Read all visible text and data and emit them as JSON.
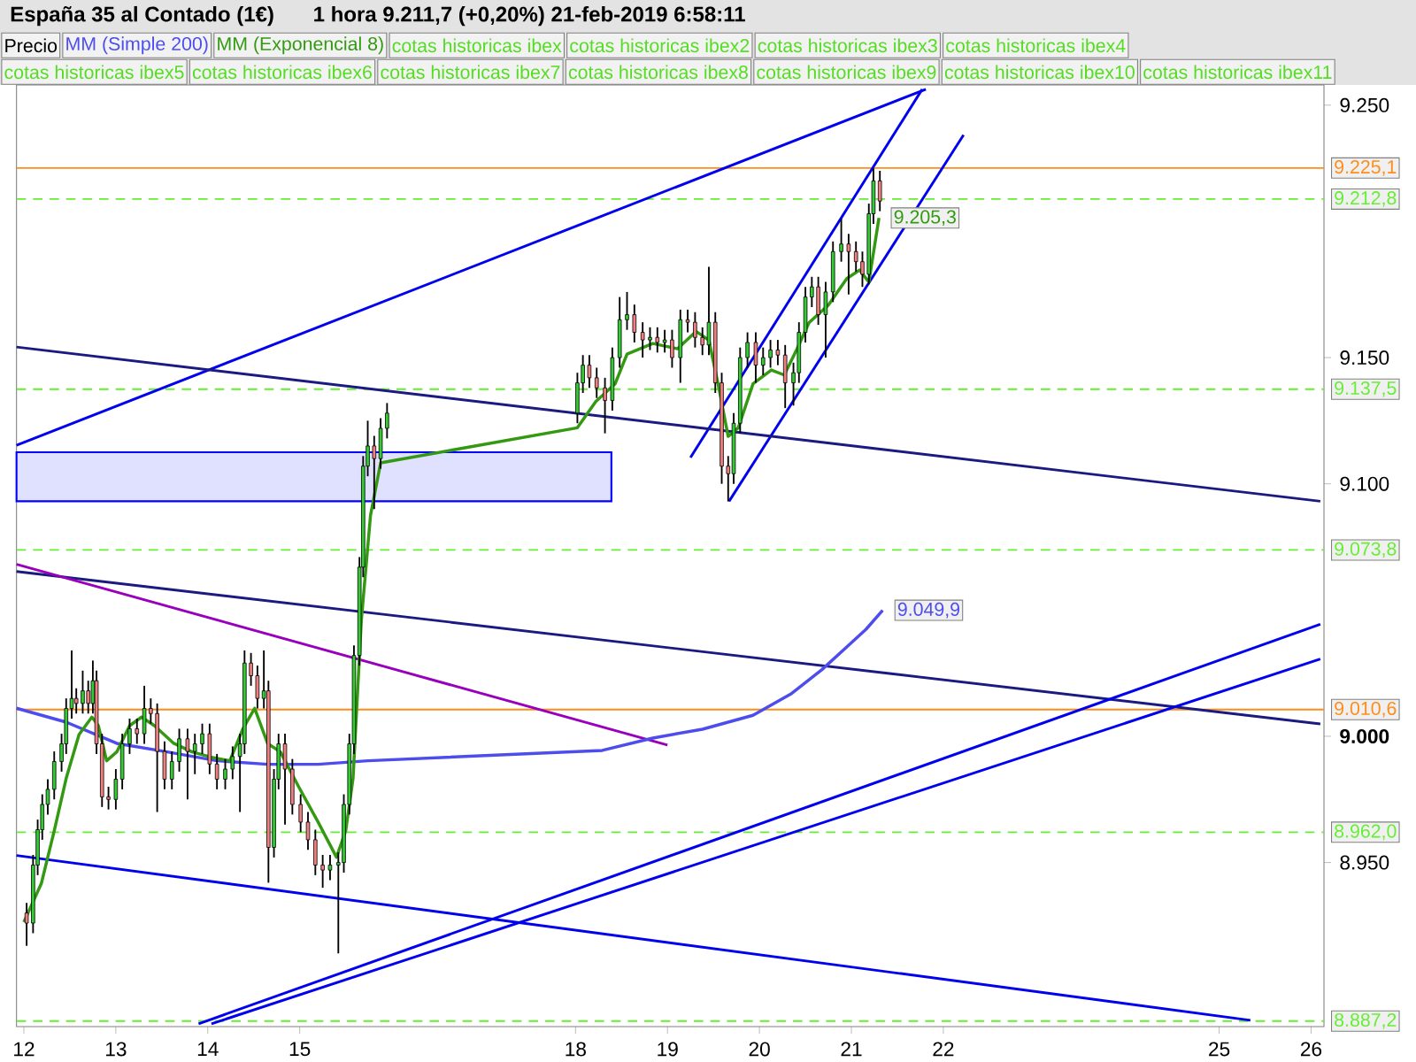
{
  "chart_data": {
    "type": "candlestick",
    "title": "España 35 al Contado (1€)",
    "subtitle": "1 hora   9.211,7 (+0,20%)   21-feb-2019 6:58:11",
    "legend": "top",
    "xlim": [
      11.92,
      26.14
    ],
    "ylim": [
      8885,
      9258
    ],
    "xticks": [
      12,
      13,
      14,
      15,
      18,
      19,
      20,
      21,
      22,
      25,
      26
    ],
    "yticks": [
      {
        "value": 8950,
        "label": "8.950"
      },
      {
        "value": 9000,
        "label": "**9.000**"
      },
      {
        "value": 9100,
        "label": "9.100"
      },
      {
        "value": 9150,
        "label": "9.150"
      },
      {
        "value": 9250,
        "label": "9.250"
      }
    ],
    "series": [
      {
        "name": "Precio",
        "color": "#000000",
        "x": [
          12.03,
          12.1,
          12.15,
          12.2,
          12.26,
          12.33,
          12.41,
          12.46,
          12.52,
          12.57,
          12.64,
          12.7,
          12.75,
          12.79,
          12.85,
          12.92,
          13.0,
          13.07,
          13.15,
          13.23,
          13.31,
          13.38,
          13.45,
          13.53,
          13.61,
          13.69,
          13.78,
          13.86,
          13.94,
          14.02,
          14.1,
          14.19,
          14.27,
          14.35,
          14.4,
          14.47,
          14.54,
          14.61,
          14.66,
          14.72,
          14.77,
          14.84,
          14.92,
          15.01,
          15.09,
          15.17,
          15.25,
          15.33,
          15.42,
          15.48,
          15.54,
          15.59,
          15.65,
          15.69,
          15.74,
          15.81,
          15.88,
          15.95,
          18.02,
          18.08,
          18.15,
          18.23,
          18.32,
          18.4,
          18.48,
          18.56,
          18.64,
          18.73,
          18.81,
          18.89,
          18.97,
          19.05,
          19.14,
          19.22,
          19.3,
          19.38,
          19.45,
          19.52,
          19.59,
          19.66,
          19.72,
          19.79,
          19.87,
          19.96,
          20.04,
          20.12,
          20.2,
          20.28,
          20.37,
          20.43,
          20.5,
          20.57,
          20.64,
          20.72,
          20.8,
          20.89,
          20.97,
          21.05,
          21.12,
          21.19,
          21.24,
          21.31
        ],
        "ohlc": [
          [
            8930,
            8934,
            8917,
            8926
          ],
          [
            8926,
            8953,
            8922,
            8949
          ],
          [
            8949,
            8967,
            8945,
            8963
          ],
          [
            8963,
            8977,
            8959,
            8973
          ],
          [
            8973,
            8983,
            8969,
            8979
          ],
          [
            8979,
            8994,
            8975,
            8990
          ],
          [
            8990,
            9001,
            8986,
            8997
          ],
          [
            8997,
            9015,
            8993,
            9011
          ],
          [
            9011,
            9034,
            9007,
            9015
          ],
          [
            9015,
            9019,
            9009,
            9013
          ],
          [
            9013,
            9026,
            9009,
            9018
          ],
          [
            9018,
            9022,
            9009,
            9013
          ],
          [
            9013,
            9030,
            9009,
            9022
          ],
          [
            9022,
            9026,
            8993,
            8997
          ],
          [
            8997,
            9001,
            8972,
            8976
          ],
          [
            8976,
            8980,
            8971,
            8975
          ],
          [
            8975,
            8987,
            8971,
            8983
          ],
          [
            8983,
            9001,
            8979,
            8997
          ],
          [
            8997,
            9007,
            8993,
            9003
          ],
          [
            9003,
            9007,
            8997,
            9001
          ],
          [
            9001,
            9020,
            8997,
            9011
          ],
          [
            9011,
            9015,
            9005,
            9009
          ],
          [
            9009,
            9013,
            8970,
            8994
          ],
          [
            8994,
            8998,
            8979,
            8983
          ],
          [
            8983,
            8994,
            8979,
            8990
          ],
          [
            8990,
            9003,
            8986,
            8999
          ],
          [
            8999,
            9003,
            8975,
            8994
          ],
          [
            8994,
            9001,
            8985,
            8997
          ],
          [
            8997,
            9005,
            8993,
            9001
          ],
          [
            9001,
            9005,
            8985,
            8989
          ],
          [
            8989,
            8993,
            8979,
            8983
          ],
          [
            8983,
            8991,
            8979,
            8987
          ],
          [
            8987,
            8996,
            8983,
            8992
          ],
          [
            8992,
            9001,
            8970,
            8997
          ],
          [
            8997,
            9034,
            8993,
            9029
          ],
          [
            9029,
            9033,
            9020,
            9024
          ],
          [
            9024,
            9028,
            9011,
            9015
          ],
          [
            9015,
            9034,
            9011,
            9018
          ],
          [
            9018,
            9022,
            8942,
            8956
          ],
          [
            8956,
            8987,
            8952,
            8983
          ],
          [
            8983,
            9001,
            8979,
            8997
          ],
          [
            8997,
            9001,
            8965,
            8987
          ],
          [
            8987,
            8991,
            8969,
            8973
          ],
          [
            8973,
            8977,
            8962,
            8966
          ],
          [
            8966,
            8970,
            8955,
            8959
          ],
          [
            8959,
            8963,
            8945,
            8949
          ],
          [
            8949,
            8953,
            8940,
            8947
          ],
          [
            8947,
            8953,
            8943,
            8949
          ],
          [
            8949,
            8954,
            8914,
            8950
          ],
          [
            8950,
            8977,
            8946,
            8973
          ],
          [
            8973,
            9001,
            8969,
            8997
          ],
          [
            8997,
            9036,
            8993,
            9032
          ],
          [
            9032,
            9071,
            9028,
            9067
          ],
          [
            9067,
            9111,
            9063,
            9107
          ],
          [
            9107,
            9125,
            9103,
            9115
          ],
          [
            9115,
            9119,
            9090,
            9110
          ],
          [
            9110,
            9126,
            9106,
            9122
          ],
          [
            9122,
            9132,
            9118,
            9128
          ],
          [
            9128,
            9144,
            9124,
            9140
          ],
          [
            9140,
            9151,
            9136,
            9147
          ],
          [
            9147,
            9151,
            9138,
            9142
          ],
          [
            9142,
            9146,
            9134,
            9138
          ],
          [
            9138,
            9142,
            9120,
            9133
          ],
          [
            9133,
            9154,
            9129,
            9150
          ],
          [
            9150,
            9174,
            9146,
            9165
          ],
          [
            9165,
            9176,
            9161,
            9167
          ],
          [
            9167,
            9171,
            9156,
            9160
          ],
          [
            9160,
            9164,
            9150,
            9157
          ],
          [
            9157,
            9162,
            9153,
            9158
          ],
          [
            9158,
            9162,
            9152,
            9156
          ],
          [
            9156,
            9161,
            9152,
            9157
          ],
          [
            9157,
            9161,
            9146,
            9150
          ],
          [
            9150,
            9169,
            9140,
            9165
          ],
          [
            9165,
            9169,
            9160,
            9164
          ],
          [
            9164,
            9168,
            9154,
            9158
          ],
          [
            9158,
            9162,
            9151,
            9155
          ],
          [
            9155,
            9186,
            9151,
            9164
          ],
          [
            9164,
            9168,
            9136,
            9140
          ],
          [
            9140,
            9144,
            9100,
            9107
          ],
          [
            9107,
            9111,
            9093,
            9104
          ],
          [
            9104,
            9128,
            9100,
            9124
          ],
          [
            9124,
            9154,
            9120,
            9150
          ],
          [
            9150,
            9160,
            9146,
            9156
          ],
          [
            9156,
            9160,
            9140,
            9147
          ],
          [
            9147,
            9154,
            9143,
            9150
          ],
          [
            9150,
            9157,
            9146,
            9153
          ],
          [
            9153,
            9157,
            9147,
            9151
          ],
          [
            9151,
            9155,
            9130,
            9140
          ],
          [
            9140,
            9148,
            9131,
            9144
          ],
          [
            9144,
            9164,
            9140,
            9160
          ],
          [
            9160,
            9178,
            9156,
            9174
          ],
          [
            9174,
            9182,
            9170,
            9178
          ],
          [
            9178,
            9182,
            9163,
            9167
          ],
          [
            9167,
            9180,
            9150,
            9176
          ],
          [
            9176,
            9196,
            9172,
            9192
          ],
          [
            9192,
            9205,
            9188,
            9195
          ],
          [
            9195,
            9199,
            9175,
            9192
          ],
          [
            9192,
            9196,
            9184,
            9188
          ],
          [
            9188,
            9192,
            9178,
            9183
          ],
          [
            9183,
            9211,
            9179,
            9207
          ],
          [
            9207,
            9225,
            9203,
            9220
          ],
          [
            9220,
            9224,
            9208,
            9212
          ]
        ],
        "colors": [
          "#f08080",
          "#33cc33",
          "#33cc33",
          "#33cc33",
          "#33cc33",
          "#33cc33",
          "#33cc33",
          "#33cc33",
          "#33cc33",
          "#f08080",
          "#33cc33",
          "#f08080",
          "#33cc33",
          "#f08080",
          "#f08080",
          "#f08080",
          "#33cc33",
          "#33cc33",
          "#33cc33",
          "#f08080",
          "#33cc33",
          "#f08080",
          "#f08080",
          "#f08080",
          "#33cc33",
          "#33cc33",
          "#f08080",
          "#33cc33",
          "#33cc33",
          "#f08080",
          "#f08080",
          "#33cc33",
          "#33cc33",
          "#33cc33",
          "#33cc33",
          "#f08080",
          "#f08080",
          "#33cc33",
          "#f08080",
          "#33cc33",
          "#33cc33",
          "#f08080",
          "#f08080",
          "#f08080",
          "#f08080",
          "#f08080",
          "#f08080",
          "#33cc33",
          "#33cc33",
          "#33cc33",
          "#33cc33",
          "#33cc33",
          "#33cc33",
          "#33cc33",
          "#33cc33",
          "#f08080",
          "#33cc33",
          "#33cc33",
          "#33cc33",
          "#33cc33",
          "#f08080",
          "#f08080",
          "#f08080",
          "#33cc33",
          "#33cc33",
          "#33cc33",
          "#f08080",
          "#f08080",
          "#33cc33",
          "#f08080",
          "#33cc33",
          "#f08080",
          "#33cc33",
          "#f08080",
          "#f08080",
          "#f08080",
          "#33cc33",
          "#f08080",
          "#f08080",
          "#f08080",
          "#33cc33",
          "#33cc33",
          "#33cc33",
          "#f08080",
          "#33cc33",
          "#33cc33",
          "#f08080",
          "#f08080",
          "#33cc33",
          "#33cc33",
          "#33cc33",
          "#33cc33",
          "#f08080",
          "#33cc33",
          "#33cc33",
          "#33cc33",
          "#f08080",
          "#f08080",
          "#f08080",
          "#33cc33",
          "#33cc33",
          "#f08080"
        ]
      },
      {
        "type": "line",
        "color": "#0000ff",
        "x": [
          11.92,
          18.39
        ],
        "values": [
          null,
          null
        ],
        "lower": [
          9093.1,
          9093.1
        ],
        "upper": [
          9112.5,
          9112.5
        ]
      },
      {
        "type": "line",
        "color": "#0000ee",
        "x": [
          11.92,
          21.81
        ],
        "values": [
          9115.3,
          9256.3
        ]
      },
      {
        "type": "line",
        "color": "#0000ee",
        "x": [
          19.25,
          21.77
        ],
        "values": [
          9110.4,
          9256.3
        ]
      },
      {
        "type": "line",
        "color": "#0000ee",
        "x": [
          19.67,
          22.22
        ],
        "values": [
          9093.1,
          9238.2
        ]
      },
      {
        "type": "line",
        "color": "#1a1a80",
        "x": [
          11.92,
          26.1
        ],
        "values": [
          9154.2,
          9093.1
        ]
      },
      {
        "type": "line",
        "color": "#1a1a80",
        "x": [
          11.92,
          26.1
        ],
        "values": [
          9065.3,
          9004.9
        ]
      },
      {
        "type": "line",
        "color": "#9900bb",
        "x": [
          11.92,
          19.0
        ],
        "values": [
          9068.1,
          8996.5
        ]
      },
      {
        "type": "line",
        "color": "#0000ee",
        "x": [
          11.92,
          25.34
        ],
        "values": [
          8952.8,
          8887.5
        ]
      },
      {
        "type": "line",
        "color": "#0000ee",
        "x": [
          13.9,
          26.1
        ],
        "values": [
          8886.1,
          9044.4
        ]
      },
      {
        "type": "line",
        "color": "#0000ee",
        "x": [
          14.04,
          26.1
        ],
        "values": [
          8886.1,
          9030.6
        ]
      },
      {
        "name": "MM (Simple 200)",
        "type": "line",
        "color": "#4d4dee",
        "x": [
          11.92,
          12.46,
          13.01,
          13.56,
          14.1,
          14.65,
          15.2,
          15.74,
          18.29,
          18.84,
          19.38,
          19.93,
          20.34,
          20.68,
          20.95,
          21.16,
          21.34
        ],
        "values": [
          9011.1,
          9005.6,
          8997.2,
          8993.8,
          8990.3,
          8988.9,
          8988.9,
          8990.3,
          8994.4,
          8999.3,
          9002.8,
          9008.3,
          9016.7,
          9026.4,
          9035.4,
          9042.4,
          9049.9
        ],
        "value_labels": [
          null,
          null,
          null,
          null,
          null,
          null,
          null,
          null,
          null,
          null,
          null,
          null,
          null,
          null,
          null,
          null,
          "9.049,9"
        ]
      },
      {
        "name": "MM (Exponencial 8)",
        "type": "line",
        "color": "#339911",
        "x": [
          12.0,
          12.19,
          12.33,
          12.46,
          12.6,
          12.74,
          12.81,
          12.9,
          13.01,
          13.15,
          13.28,
          13.42,
          13.63,
          13.83,
          14.04,
          14.24,
          14.38,
          14.51,
          14.65,
          14.79,
          14.99,
          15.2,
          15.4,
          15.5,
          15.58,
          15.67,
          15.77,
          15.88,
          18.02,
          18.22,
          18.43,
          18.56,
          18.84,
          19.11,
          19.31,
          19.45,
          19.55,
          19.66,
          19.77,
          19.93,
          20.13,
          20.27,
          20.41,
          20.54,
          20.75,
          20.95,
          21.09,
          21.19,
          21.3
        ],
        "values": [
          8926.4,
          8941.7,
          8962.5,
          8983.3,
          9000.7,
          9007.6,
          9004.2,
          8990.3,
          8993.8,
          9004.2,
          9007.6,
          9004.2,
          8997.2,
          8993.8,
          8991.7,
          8990.3,
          9002.8,
          9011.1,
          8997.2,
          8993.8,
          8979.9,
          8966.0,
          8952.1,
          8962.5,
          8983.3,
          9045.8,
          9087.5,
          9108.3,
          9122.2,
          9132.6,
          9139.6,
          9151.4,
          9155.6,
          9153.5,
          9160.4,
          9156.9,
          9139.6,
          9118.8,
          9122.2,
          9139.6,
          9145.1,
          9143.1,
          9153.5,
          9163.9,
          9170.8,
          9181.3,
          9184.7,
          9179.9,
          9205.3
        ],
        "value_labels": [
          null,
          null,
          null,
          null,
          null,
          null,
          null,
          null,
          null,
          null,
          null,
          null,
          null,
          null,
          null,
          null,
          null,
          null,
          null,
          null,
          null,
          null,
          null,
          null,
          null,
          null,
          null,
          null,
          null,
          null,
          null,
          null,
          null,
          null,
          null,
          null,
          null,
          null,
          null,
          null,
          null,
          null,
          null,
          null,
          null,
          null,
          null,
          null,
          "9.205,3"
        ]
      }
    ],
    "ref_lines": [
      {
        "axis": "y",
        "value": 9225.1,
        "label": "9.225,1",
        "color": "#ff8c1a",
        "line_style": "solid"
      },
      {
        "axis": "y",
        "value": 9212.8,
        "label": "9.212,8",
        "color": "#66ee33",
        "line_style": "dashed"
      },
      {
        "axis": "y",
        "value": 9137.5,
        "label": "9.137,5",
        "color": "#66ee33",
        "line_style": "dashed"
      },
      {
        "axis": "y",
        "value": 9073.8,
        "label": "9.073,8",
        "color": "#66ee33",
        "line_style": "dashed"
      },
      {
        "axis": "y",
        "value": 9010.6,
        "label": "9.010,6",
        "color": "#ff8c1a",
        "line_style": "solid"
      },
      {
        "axis": "y",
        "value": 8962.0,
        "label": "8.962,0",
        "color": "#66ee33",
        "line_style": "dashed"
      },
      {
        "axis": "y",
        "value": 8887.2,
        "label": "8.887,2",
        "color": "#66ee33",
        "line_style": "dashed"
      }
    ],
    "annotations": [
      "cotas historicas ibex",
      "cotas historicas ibex2",
      "cotas historicas ibex3",
      "cotas historicas ibex4",
      "cotas historicas ibex5",
      "cotas historicas ibex6",
      "cotas historicas ibex7",
      "cotas historicas ibex8",
      "cotas historicas ibex9",
      "cotas historicas ibex10",
      "cotas historicas ibex11"
    ]
  }
}
